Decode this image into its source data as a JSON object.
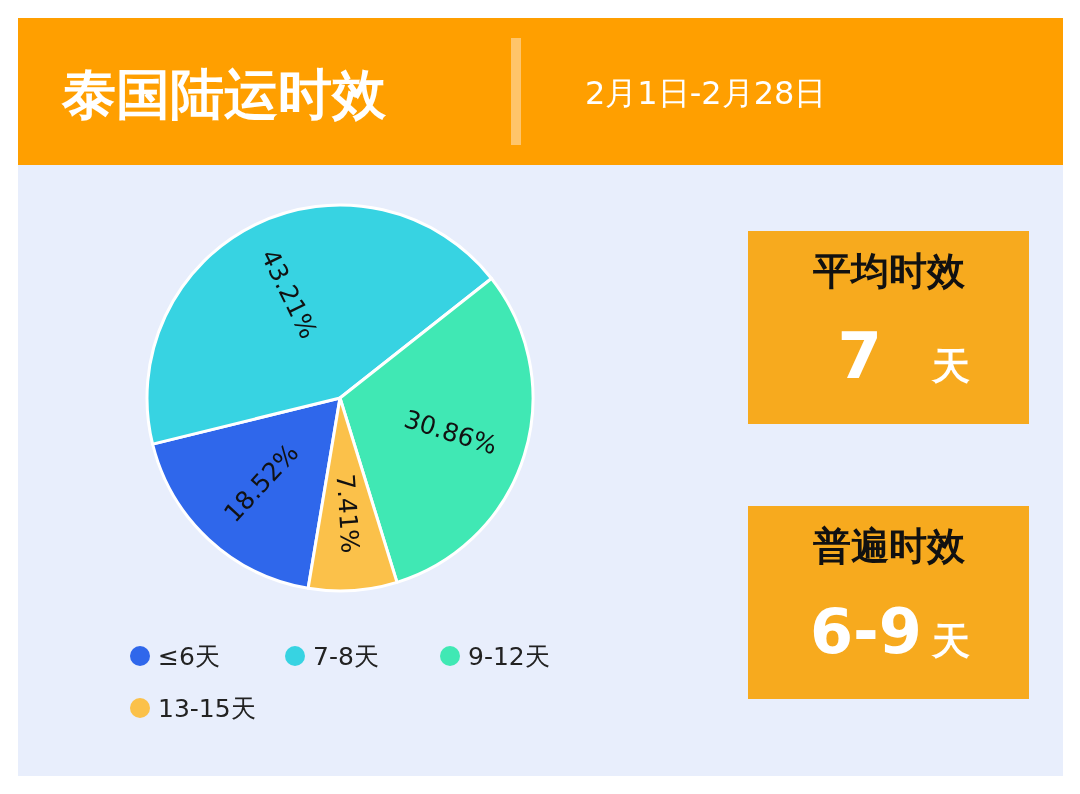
{
  "chart_data": [
    {
      "type": "pie",
      "title": "泰国陆运时效",
      "subtitle": "2月1日-2月28日",
      "categories": [
        "≤6天",
        "7-8天",
        "9-12天",
        "13-15天"
      ],
      "values": [
        18.52,
        43.21,
        30.86,
        7.41
      ],
      "colors": [
        "#2f67eb",
        "#37d3e2",
        "#40e8b4",
        "#fbc14a"
      ],
      "value_labels": [
        "18.52%",
        "43.21%",
        "30.86%",
        "7.41%"
      ],
      "legend": "bottom"
    },
    {
      "type": "other",
      "title": "平均时效",
      "annotations": [
        "7",
        "天"
      ]
    },
    {
      "type": "other",
      "title": "普遍时效",
      "annotations": [
        "6-9",
        "天"
      ]
    }
  ]
}
